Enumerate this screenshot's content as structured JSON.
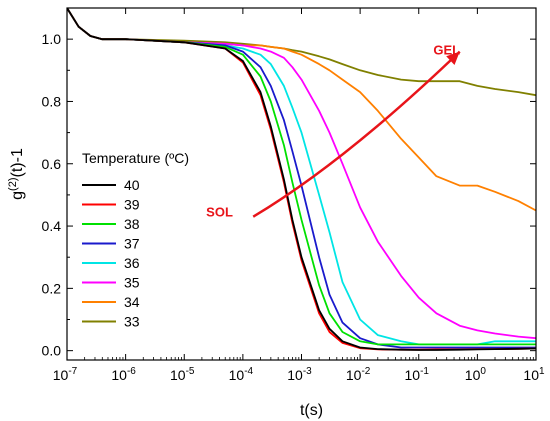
{
  "chart_data": {
    "type": "line",
    "xscale": "log",
    "xlim": [
      1e-07,
      10
    ],
    "ylim": [
      -0.03,
      1.1
    ],
    "xlabel": "t(s)",
    "ylabel": "g(2)(t)-1",
    "ylabel_parts": {
      "base": "g",
      "sup": "(2)",
      "rest": "(t)-1"
    },
    "yticks": [
      0.0,
      0.2,
      0.4,
      0.6,
      0.8,
      1.0
    ],
    "ytick_labels": [
      "0.0",
      "0.2",
      "0.4",
      "0.6",
      "0.8",
      "1.0"
    ],
    "xticks": [
      1e-07,
      1e-06,
      1e-05,
      0.0001,
      0.001,
      0.01,
      0.1,
      1,
      10
    ],
    "xtick_labels": [
      {
        "base": "10",
        "exp": "-7"
      },
      {
        "base": "10",
        "exp": "-6"
      },
      {
        "base": "10",
        "exp": "-5"
      },
      {
        "base": "10",
        "exp": "-4"
      },
      {
        "base": "10",
        "exp": "-3"
      },
      {
        "base": "10",
        "exp": "-2"
      },
      {
        "base": "10",
        "exp": "-1"
      },
      {
        "base": "10",
        "exp": "0"
      },
      {
        "base": "10",
        "exp": "1"
      }
    ],
    "legend": {
      "title": "Temperature (ºC)",
      "placement": "left-middle"
    },
    "x": [
      1e-07,
      1.58e-07,
      2.51e-07,
      3.98e-07,
      6.31e-07,
      1e-06,
      1e-05,
      5e-05,
      0.0001,
      0.0002,
      0.0003,
      0.0005,
      0.0007,
      0.001,
      0.002,
      0.003,
      0.005,
      0.01,
      0.02,
      0.05,
      0.1,
      0.2,
      0.5,
      1,
      2,
      5,
      10
    ],
    "series": [
      {
        "name": "40",
        "color": "#000000",
        "values": [
          1.1,
          1.04,
          1.01,
          1.0,
          1.0,
          1.0,
          0.99,
          0.97,
          0.93,
          0.83,
          0.72,
          0.55,
          0.42,
          0.3,
          0.13,
          0.07,
          0.03,
          0.01,
          0.005,
          0.003,
          0.002,
          0.002,
          0.003,
          0.004,
          0.005,
          0.006,
          0.007
        ]
      },
      {
        "name": "39",
        "color": "#ff0000",
        "values": [
          1.1,
          1.04,
          1.01,
          1.0,
          1.0,
          1.0,
          0.99,
          0.97,
          0.925,
          0.82,
          0.71,
          0.54,
          0.41,
          0.29,
          0.12,
          0.06,
          0.025,
          0.008,
          0.004,
          0.003,
          0.003,
          0.004,
          0.004,
          0.005,
          0.005,
          0.006,
          0.007
        ]
      },
      {
        "name": "38",
        "color": "#00e000",
        "values": [
          1.1,
          1.04,
          1.01,
          1.0,
          1.0,
          1.0,
          0.99,
          0.975,
          0.95,
          0.88,
          0.8,
          0.66,
          0.54,
          0.42,
          0.21,
          0.12,
          0.06,
          0.03,
          0.02,
          0.02,
          0.02,
          0.02,
          0.02,
          0.02,
          0.02,
          0.02,
          0.02
        ]
      },
      {
        "name": "37",
        "color": "#1a1acc",
        "values": [
          1.1,
          1.04,
          1.01,
          1.0,
          1.0,
          1.0,
          0.99,
          0.98,
          0.96,
          0.91,
          0.85,
          0.74,
          0.64,
          0.53,
          0.3,
          0.18,
          0.09,
          0.04,
          0.02,
          0.01,
          0.01,
          0.01,
          0.01,
          0.01,
          0.01,
          0.01,
          0.01
        ]
      },
      {
        "name": "36",
        "color": "#00e5e5",
        "values": [
          1.1,
          1.04,
          1.01,
          1.0,
          1.0,
          1.0,
          0.99,
          0.98,
          0.97,
          0.95,
          0.92,
          0.85,
          0.78,
          0.7,
          0.5,
          0.38,
          0.22,
          0.1,
          0.05,
          0.03,
          0.02,
          0.02,
          0.02,
          0.02,
          0.03,
          0.03,
          0.03
        ]
      },
      {
        "name": "35",
        "color": "#ff00ff",
        "values": [
          1.1,
          1.04,
          1.01,
          1.0,
          1.0,
          1.0,
          0.99,
          0.985,
          0.98,
          0.97,
          0.96,
          0.94,
          0.91,
          0.87,
          0.77,
          0.7,
          0.6,
          0.46,
          0.35,
          0.24,
          0.17,
          0.12,
          0.08,
          0.065,
          0.055,
          0.045,
          0.04
        ]
      },
      {
        "name": "34",
        "color": "#ff8000",
        "values": [
          1.1,
          1.04,
          1.01,
          1.0,
          1.0,
          1.0,
          0.99,
          0.985,
          0.98,
          0.98,
          0.975,
          0.97,
          0.96,
          0.95,
          0.92,
          0.9,
          0.87,
          0.83,
          0.77,
          0.68,
          0.62,
          0.56,
          0.53,
          0.53,
          0.51,
          0.48,
          0.45
        ]
      },
      {
        "name": "33",
        "color": "#808000",
        "values": [
          1.1,
          1.04,
          1.01,
          1.0,
          1.0,
          1.0,
          0.995,
          0.99,
          0.985,
          0.98,
          0.975,
          0.97,
          0.965,
          0.96,
          0.945,
          0.935,
          0.92,
          0.9,
          0.885,
          0.87,
          0.865,
          0.865,
          0.865,
          0.85,
          0.84,
          0.83,
          0.82
        ]
      }
    ],
    "annotations": [
      {
        "text": "GEL",
        "color": "#e8141a",
        "x": 0.3,
        "y": 0.95
      },
      {
        "text": "SOL",
        "color": "#e8141a",
        "x": 4e-05,
        "y": 0.43
      }
    ],
    "arrow": {
      "color": "#e8141a",
      "from": {
        "x": 0.00015,
        "y": 0.43
      },
      "to": {
        "x": 0.5,
        "y": 0.96
      }
    }
  }
}
